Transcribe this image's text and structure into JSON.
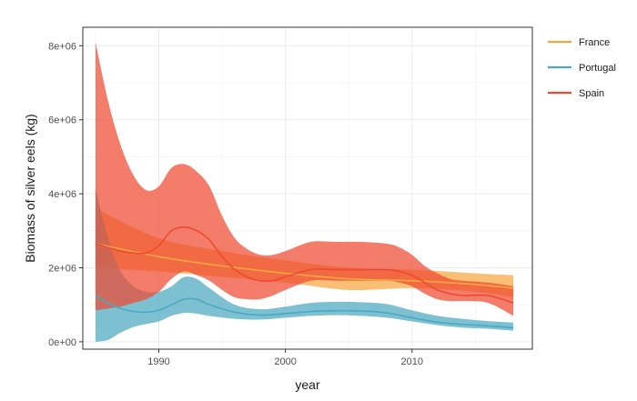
{
  "chart_data": {
    "type": "area",
    "xlabel": "year",
    "ylabel": "Biomass of silver eels (kg)",
    "xlim": [
      1984,
      2019.5
    ],
    "ylim": [
      -200000,
      8500000
    ],
    "x_ticks": [
      1990,
      2000,
      2010
    ],
    "x_tick_labels": [
      "1990",
      "2000",
      "2010"
    ],
    "y_ticks": [
      0,
      2000000,
      4000000,
      6000000,
      8000000
    ],
    "y_tick_labels": [
      "0e+00",
      "2e+06",
      "4e+06",
      "6e+06",
      "8e+06"
    ],
    "grid": true,
    "legend_position": "right",
    "series": [
      {
        "name": "France",
        "color": "#F5A640",
        "x": [
          1985,
          1990,
          1995,
          2000,
          2005,
          2010,
          2015,
          2018
        ],
        "mid": [
          2650000,
          2300000,
          2050000,
          1850000,
          1700000,
          1650000,
          1550000,
          1450000
        ],
        "lower": [
          2000000,
          1900000,
          1750000,
          1600000,
          1400000,
          1450000,
          1350000,
          1200000
        ],
        "upper": [
          3600000,
          2800000,
          2450000,
          2200000,
          2000000,
          1950000,
          1850000,
          1800000
        ]
      },
      {
        "name": "Portugal",
        "color": "#4AA8C1",
        "x": [
          1985,
          1986,
          1987,
          1988,
          1989,
          1990,
          1991,
          1992,
          1993,
          1994,
          1996,
          1998,
          2000,
          2002,
          2004,
          2006,
          2008,
          2010,
          2012,
          2014,
          2016,
          2018
        ],
        "mid": [
          1250000,
          1050000,
          900000,
          820000,
          800000,
          850000,
          1000000,
          1150000,
          1150000,
          1000000,
          800000,
          720000,
          760000,
          820000,
          840000,
          830000,
          780000,
          650000,
          530000,
          470000,
          430000,
          380000
        ],
        "lower": [
          0,
          50000,
          250000,
          400000,
          480000,
          550000,
          700000,
          780000,
          760000,
          700000,
          620000,
          600000,
          650000,
          700000,
          720000,
          700000,
          650000,
          550000,
          450000,
          380000,
          350000,
          300000
        ],
        "upper": [
          4150000,
          2800000,
          1900000,
          1500000,
          1350000,
          1350000,
          1500000,
          1750000,
          1700000,
          1450000,
          1000000,
          880000,
          950000,
          1050000,
          1080000,
          1070000,
          1020000,
          850000,
          700000,
          620000,
          560000,
          520000
        ]
      },
      {
        "name": "Spain",
        "color": "#EE4A30",
        "x": [
          1985,
          1986,
          1987,
          1988,
          1989,
          1990,
          1991,
          1992,
          1993,
          1994,
          1995,
          1996,
          1997,
          1998,
          1999,
          2000,
          2002,
          2004,
          2006,
          2008,
          2009,
          2010,
          2011,
          2012,
          2013,
          2014,
          2016,
          2018
        ],
        "mid": [
          2650000,
          2550000,
          2450000,
          2400000,
          2400000,
          2600000,
          3000000,
          3100000,
          3000000,
          2750000,
          2300000,
          1950000,
          1750000,
          1650000,
          1650000,
          1750000,
          1950000,
          1950000,
          1950000,
          1950000,
          1900000,
          1800000,
          1600000,
          1400000,
          1300000,
          1250000,
          1250000,
          1050000
        ],
        "lower": [
          850000,
          900000,
          950000,
          1050000,
          1150000,
          1350000,
          1700000,
          1900000,
          1800000,
          1650000,
          1400000,
          1200000,
          1150000,
          1150000,
          1250000,
          1400000,
          1650000,
          1650000,
          1650000,
          1650000,
          1600000,
          1500000,
          1300000,
          1150000,
          1100000,
          1100000,
          1050000,
          700000
        ],
        "upper": [
          8100000,
          6500000,
          5300000,
          4500000,
          4100000,
          4200000,
          4700000,
          4800000,
          4600000,
          4200000,
          3400000,
          2800000,
          2500000,
          2350000,
          2350000,
          2450000,
          2700000,
          2700000,
          2700000,
          2650000,
          2550000,
          2350000,
          2050000,
          1850000,
          1700000,
          1650000,
          1600000,
          1500000
        ]
      }
    ]
  }
}
